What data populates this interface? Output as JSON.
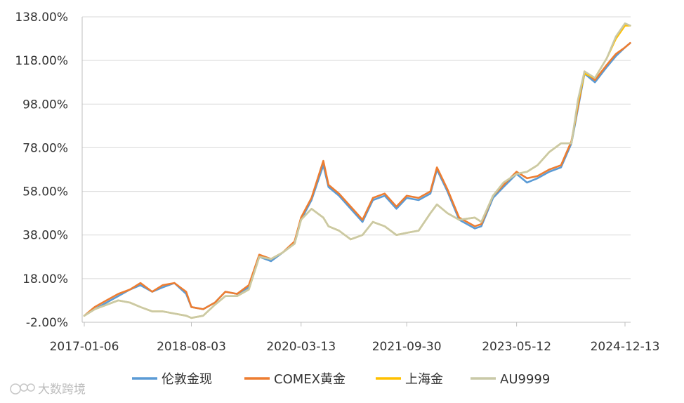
{
  "chart_data": {
    "type": "line",
    "title": "",
    "xlabel": "",
    "ylabel": "",
    "ylim": [
      -2,
      138
    ],
    "y_ticks": [
      "138.00%",
      "118.00%",
      "98.00%",
      "78.00%",
      "58.00%",
      "38.00%",
      "18.00%",
      "-2.00%"
    ],
    "y_tick_values": [
      138,
      118,
      98,
      78,
      58,
      38,
      18,
      -2
    ],
    "x_ticks": [
      "2017-01-06",
      "2018-08-03",
      "2020-03-13",
      "2021-09-30",
      "2023-05-12",
      "2024-12-13"
    ],
    "grid": true,
    "legend_position": "bottom",
    "x": [
      "2017-01-06",
      "2017-03-03",
      "2017-05-05",
      "2017-07-07",
      "2017-09-08",
      "2017-11-03",
      "2018-01-05",
      "2018-03-02",
      "2018-05-04",
      "2018-07-06",
      "2018-08-03",
      "2018-10-05",
      "2018-12-07",
      "2019-02-01",
      "2019-04-05",
      "2019-06-07",
      "2019-08-02",
      "2019-10-04",
      "2019-12-06",
      "2020-02-07",
      "2020-03-13",
      "2020-05-08",
      "2020-07-10",
      "2020-08-07",
      "2020-10-02",
      "2020-12-04",
      "2021-02-05",
      "2021-04-02",
      "2021-06-04",
      "2021-08-06",
      "2021-09-30",
      "2021-12-03",
      "2022-02-04",
      "2022-03-11",
      "2022-05-06",
      "2022-07-08",
      "2022-09-30",
      "2022-11-04",
      "2023-01-06",
      "2023-03-03",
      "2023-05-12",
      "2023-07-07",
      "2023-09-01",
      "2023-11-03",
      "2024-01-05",
      "2024-03-01",
      "2024-04-05",
      "2024-05-10",
      "2024-07-05",
      "2024-09-06",
      "2024-10-25",
      "2024-12-13",
      "2025-01-10"
    ],
    "series": [
      {
        "name": "伦敦金现",
        "color": "#5b9bd5",
        "values": [
          1,
          4,
          7,
          10,
          13,
          15,
          12,
          14,
          16,
          11,
          5,
          4,
          7,
          12,
          11,
          14,
          28,
          26,
          30,
          34,
          45,
          54,
          70,
          60,
          56,
          50,
          44,
          54,
          56,
          50,
          55,
          54,
          57,
          68,
          58,
          45,
          41,
          42,
          55,
          60,
          66,
          62,
          64,
          67,
          69,
          80,
          96,
          112,
          108,
          115,
          120,
          124,
          126
        ]
      },
      {
        "name": "COMEX黄金",
        "color": "#ed7d31",
        "values": [
          1,
          5,
          8,
          11,
          13,
          16,
          12,
          15,
          16,
          12,
          5,
          4,
          7,
          12,
          11,
          15,
          29,
          27,
          30,
          35,
          46,
          55,
          72,
          61,
          57,
          51,
          45,
          55,
          57,
          51,
          56,
          55,
          58,
          69,
          59,
          46,
          42,
          43,
          56,
          61,
          67,
          64,
          65,
          68,
          70,
          81,
          97,
          113,
          109,
          116,
          121,
          124,
          126
        ]
      },
      {
        "name": "上海金",
        "color": "#ffc000",
        "values": [
          1,
          4,
          6,
          8,
          7,
          5,
          3,
          3,
          2,
          1,
          0,
          1,
          6,
          10,
          10,
          13,
          28,
          27,
          30,
          34,
          45,
          50,
          46,
          42,
          40,
          36,
          38,
          44,
          42,
          38,
          39,
          40,
          48,
          52,
          48,
          45,
          46,
          44,
          56,
          62,
          66,
          67,
          70,
          76,
          80,
          80,
          99,
          112,
          110,
          119,
          128,
          134,
          134
        ]
      },
      {
        "name": "AU9999",
        "color": "#c9c9a7",
        "values": [
          1,
          4,
          6,
          8,
          7,
          5,
          3,
          3,
          2,
          1,
          0,
          1,
          6,
          10,
          10,
          13,
          28,
          27,
          30,
          34,
          45,
          50,
          46,
          42,
          40,
          36,
          38,
          44,
          42,
          38,
          39,
          40,
          48,
          52,
          48,
          45,
          46,
          44,
          56,
          62,
          66,
          67,
          70,
          76,
          80,
          80,
          100,
          113,
          110,
          119,
          129,
          135,
          134
        ]
      }
    ]
  },
  "watermark": {
    "text": "大数跨境"
  },
  "colors": {
    "grid": "#d9d9d9",
    "axis": "#bfbfbf",
    "text": "#333333"
  }
}
